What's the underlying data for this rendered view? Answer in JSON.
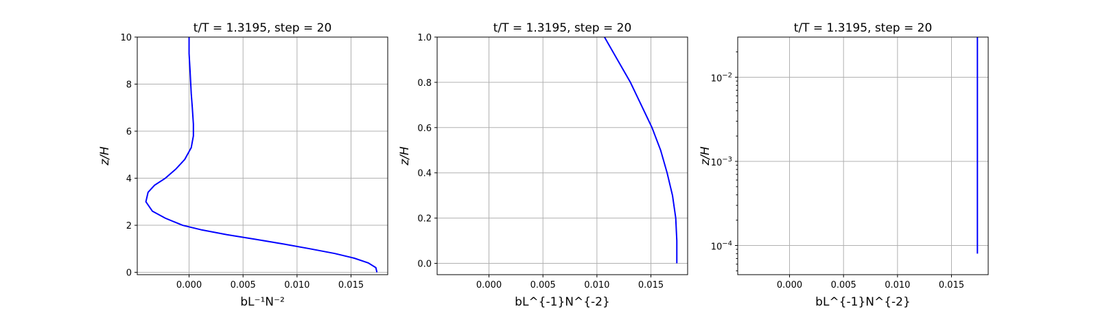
{
  "colors": {
    "line": "#0000ff",
    "grid": "#b0b0b0"
  },
  "chart_data": [
    {
      "type": "line",
      "title": "t/T = 1.3195, step = 20",
      "xlabel": "bL⁻¹N⁻²",
      "ylabel": "z/H",
      "xlim": [
        -0.0048,
        0.0184
      ],
      "ylim": [
        -0.1,
        10
      ],
      "xticks": [
        0.0,
        0.005,
        0.01,
        0.015
      ],
      "xtick_labels": [
        "0.000",
        "0.005",
        "0.010",
        "0.015"
      ],
      "yticks": [
        0,
        2,
        4,
        6,
        8,
        10
      ],
      "ytick_labels": [
        "0",
        "2",
        "4",
        "6",
        "8",
        "10"
      ],
      "yscale": "linear",
      "grid": true,
      "series": [
        {
          "x": [
            0.0174,
            0.0173,
            0.0166,
            0.0153,
            0.0135,
            0.0112,
            0.0088,
            0.0062,
            0.0035,
            0.0012,
            -0.0006,
            -0.0022,
            -0.0034,
            -0.004,
            -0.0038,
            -0.0032,
            -0.0022,
            -0.0012,
            -0.0004,
            0.0002,
            0.0004,
            0.0004,
            0.0003,
            0.0002,
            0.0001,
            0.0,
            0.0
          ],
          "y": [
            0.0,
            0.2,
            0.4,
            0.6,
            0.8,
            1.0,
            1.2,
            1.4,
            1.6,
            1.8,
            2.0,
            2.3,
            2.6,
            3.0,
            3.4,
            3.7,
            4.0,
            4.4,
            4.8,
            5.3,
            5.8,
            6.3,
            7.0,
            7.6,
            8.5,
            9.3,
            10.0
          ]
        }
      ]
    },
    {
      "type": "line",
      "title": "t/T = 1.3195, step = 20",
      "xlabel": "bL^{-1}N^{-2}",
      "ylabel": "z/H",
      "xlim": [
        -0.0048,
        0.0184
      ],
      "ylim": [
        -0.05,
        1.0
      ],
      "xticks": [
        0.0,
        0.005,
        0.01,
        0.015
      ],
      "xtick_labels": [
        "0.000",
        "0.005",
        "0.010",
        "0.015"
      ],
      "yticks": [
        0.0,
        0.2,
        0.4,
        0.6,
        0.8,
        1.0
      ],
      "ytick_labels": [
        "0.0",
        "0.2",
        "0.4",
        "0.6",
        "0.8",
        "1.0"
      ],
      "yscale": "linear",
      "grid": true,
      "series": [
        {
          "x": [
            0.0174,
            0.0174,
            0.0173,
            0.017,
            0.0165,
            0.0159,
            0.0151,
            0.0141,
            0.0131,
            0.0119,
            0.0107
          ],
          "y": [
            0.0,
            0.1,
            0.2,
            0.3,
            0.4,
            0.5,
            0.6,
            0.7,
            0.8,
            0.9,
            1.0
          ]
        }
      ]
    },
    {
      "type": "line",
      "title": "t/T = 1.3195, step = 20",
      "xlabel": "bL^{-1}N^{-2}",
      "ylabel": "z/H",
      "xlim": [
        -0.0048,
        0.0184
      ],
      "ylim": [
        4.5e-05,
        0.03
      ],
      "xticks": [
        0.0,
        0.005,
        0.01,
        0.015
      ],
      "xtick_labels": [
        "0.000",
        "0.005",
        "0.010",
        "0.015"
      ],
      "yticks": [
        0.0001,
        0.001,
        0.01
      ],
      "ytick_labels": [
        [
          "10",
          "−4"
        ],
        [
          "10",
          "−3"
        ],
        [
          "10",
          "−2"
        ]
      ],
      "yscale": "log",
      "grid": true,
      "series": [
        {
          "x": [
            0.0174,
            0.0174
          ],
          "y": [
            8e-05,
            0.03
          ]
        }
      ]
    }
  ]
}
